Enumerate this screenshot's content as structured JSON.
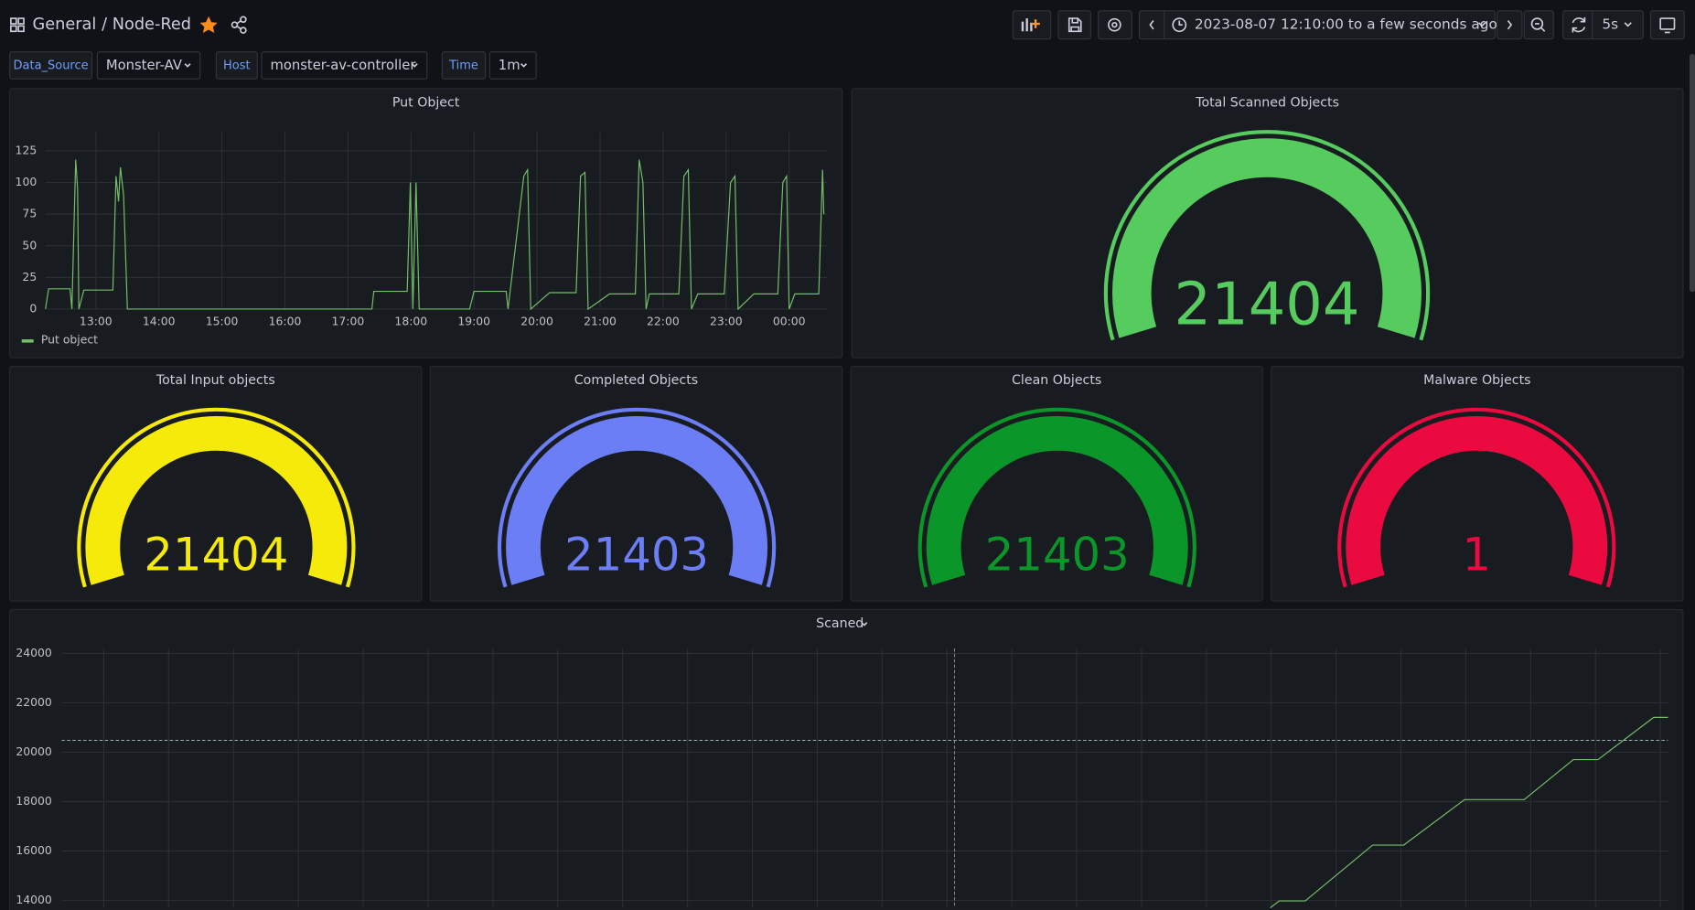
{
  "header": {
    "folder": "General",
    "dashboard": "/ Node-Red",
    "time_range": "2023-08-07 12:10:00 to a few seconds ago",
    "refresh": "5s"
  },
  "variables": [
    {
      "label": "Data_Source",
      "value": "Monster-AV"
    },
    {
      "label": "Host",
      "value": "monster-av-controller"
    },
    {
      "label": "Time",
      "value": "1m"
    }
  ],
  "chart_data": [
    {
      "type": "line",
      "title": "Put Object",
      "x": [
        12.2,
        12.25,
        12.59,
        12.62,
        12.68,
        12.71,
        12.73,
        12.81,
        13.27,
        13.32,
        13.36,
        13.39,
        13.44,
        13.5,
        17.38,
        17.41,
        17.94,
        17.99,
        18.03,
        18.08,
        18.13,
        18.93,
        19.0,
        19.51,
        19.54,
        19.79,
        19.85,
        19.9,
        20.2,
        20.62,
        20.69,
        20.76,
        20.81,
        21.15,
        21.56,
        21.62,
        21.68,
        21.73,
        21.78,
        22.25,
        22.33,
        22.4,
        22.45,
        22.55,
        22.97,
        23.07,
        23.14,
        23.19,
        23.44,
        23.82,
        23.9,
        23.96,
        24.0,
        24.09,
        24.47,
        24.53,
        24.55
      ],
      "series": [
        {
          "name": "Put object",
          "color": "#73bf69",
          "values": [
            0,
            16,
            16,
            0,
            118,
            95,
            0,
            15,
            15,
            105,
            85,
            112,
            90,
            0,
            0,
            14,
            14,
            100,
            0,
            100,
            0,
            0,
            14,
            14,
            0,
            105,
            110,
            0,
            13,
            13,
            105,
            108,
            0,
            12,
            12,
            118,
            100,
            0,
            12,
            12,
            105,
            110,
            0,
            12,
            12,
            100,
            105,
            0,
            12,
            12,
            100,
            105,
            0,
            12,
            12,
            110,
            75
          ]
        }
      ],
      "xlim": [
        12.2,
        24.6
      ],
      "xticks": [
        {
          "value": 13,
          "label": "13:00"
        },
        {
          "value": 14,
          "label": "14:00"
        },
        {
          "value": 15,
          "label": "15:00"
        },
        {
          "value": 16,
          "label": "16:00"
        },
        {
          "value": 17,
          "label": "17:00"
        },
        {
          "value": 18,
          "label": "18:00"
        },
        {
          "value": 19,
          "label": "19:00"
        },
        {
          "value": 20,
          "label": "20:00"
        },
        {
          "value": 21,
          "label": "21:00"
        },
        {
          "value": 22,
          "label": "22:00"
        },
        {
          "value": 23,
          "label": "23:00"
        },
        {
          "value": 24,
          "label": "00:00"
        }
      ],
      "ylim": [
        0,
        140
      ],
      "yticks": [
        0,
        25,
        50,
        75,
        100,
        125
      ],
      "grid": true
    },
    {
      "type": "gauge",
      "title": "Total Scanned Objects",
      "value": 21404,
      "color": "#56cc5f"
    },
    {
      "type": "gauge",
      "title": "Total Input objects",
      "value": 21404,
      "color": "#f5ea0a"
    },
    {
      "type": "gauge",
      "title": "Completed Objects",
      "value": 21403,
      "color": "#6c7ef5"
    },
    {
      "type": "gauge",
      "title": "Clean Objects",
      "value": 21403,
      "color": "#0a9628"
    },
    {
      "type": "gauge",
      "title": "Malware Objects",
      "value": 1,
      "color": "#eb0a3f"
    },
    {
      "type": "line",
      "title": "Scaned",
      "x": [
        21.53,
        21.6,
        21.8,
        22.32,
        22.56,
        23.03,
        23.49,
        23.87,
        24.06,
        24.49,
        24.6
      ],
      "values": [
        13700,
        13980,
        13980,
        16240,
        16240,
        18080,
        18080,
        19700,
        19700,
        21410,
        21410
      ],
      "color": "#73bf69",
      "xlim": [
        12.2,
        24.6
      ],
      "ylim": [
        13700,
        24200
      ],
      "yticks": [
        14000,
        16000,
        18000,
        20000,
        22000,
        24000
      ],
      "grid": true
    }
  ]
}
